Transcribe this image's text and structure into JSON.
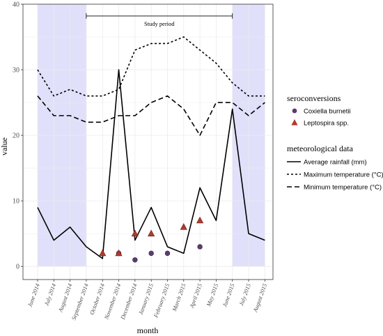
{
  "chart_data": {
    "type": "line",
    "xlabel": "month",
    "ylabel": "value",
    "ylim": [
      -2,
      40
    ],
    "yticks": [
      0,
      10,
      20,
      30,
      40
    ],
    "grid": true,
    "legend_position": "right",
    "categories": [
      "June 2014",
      "July 2014",
      "August 2014",
      "September 2014",
      "October 2014",
      "November 2014",
      "December 2014",
      "January 2015",
      "February 2015",
      "March 2015",
      "April 2015",
      "May 2015",
      "June 2015",
      "July 2015",
      "August 2015"
    ],
    "shaded_periods": [
      {
        "from": "June 2014",
        "to": "September 2014",
        "color": "#e0e0fb"
      },
      {
        "from": "June 2015",
        "to": "August 2015",
        "color": "#e0e0fb"
      }
    ],
    "annotation": {
      "label": "Study period",
      "from": "September 2014",
      "to": "June 2015",
      "y": 38.2
    },
    "series": [
      {
        "name": "Average rainfall (mm)",
        "style": "solid",
        "x": [
          0,
          1,
          2,
          3,
          4,
          5,
          6,
          7,
          8,
          9,
          10,
          11,
          12,
          13,
          14
        ],
        "values": [
          9,
          4,
          6,
          3,
          1.2,
          30,
          4,
          9,
          3,
          2,
          12,
          7,
          24,
          5,
          4
        ]
      },
      {
        "name": "Maximum temperature (°C)",
        "style": "dotted",
        "x": [
          0,
          1,
          2,
          3,
          4,
          5,
          6,
          7,
          8,
          9,
          10,
          11,
          12,
          13,
          14
        ],
        "values": [
          30,
          26,
          27,
          26,
          26,
          27,
          33,
          34,
          34,
          35,
          33,
          31,
          28,
          26,
          26
        ]
      },
      {
        "name": "Minimum temperature (°C)",
        "style": "dashed",
        "x": [
          0,
          1,
          2,
          3,
          4,
          5,
          6,
          7,
          8,
          9,
          10,
          11,
          12,
          13,
          14
        ],
        "values": [
          26,
          23,
          23,
          22,
          22,
          23,
          23,
          25,
          26,
          24,
          20,
          25,
          25,
          23,
          25
        ]
      }
    ],
    "seroconversions": [
      {
        "name": "Coxiella burnetii",
        "shape": "circle",
        "color": "#5a3d6e",
        "points": [
          [
            5,
            2
          ],
          [
            6,
            1
          ],
          [
            7,
            2
          ],
          [
            8,
            2
          ],
          [
            10,
            3
          ]
        ]
      },
      {
        "name": "Leptospira spp.",
        "shape": "triangle",
        "color": "#b03a2e",
        "points": [
          [
            4,
            2
          ],
          [
            5,
            2
          ],
          [
            6,
            5
          ],
          [
            7,
            5
          ],
          [
            9,
            6
          ],
          [
            10,
            7
          ]
        ]
      }
    ],
    "legend": {
      "sero_title": "seroconversions",
      "meteo_title": "meteorological data"
    }
  }
}
